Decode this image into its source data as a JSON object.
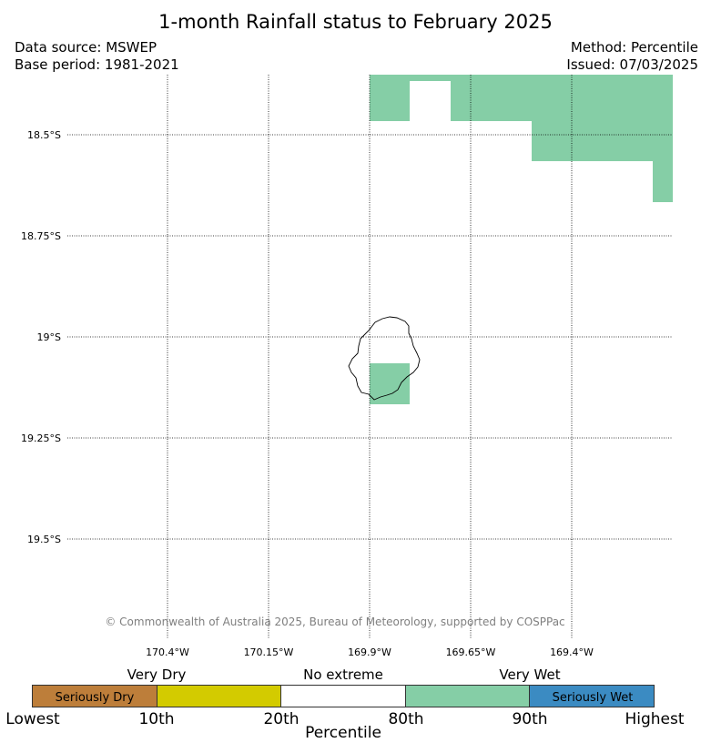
{
  "title": "1-month Rainfall status to February 2025",
  "meta": {
    "data_source": "Data source: MSWEP",
    "base_period": "Base period: 1981-2021",
    "method": "Method: Percentile",
    "issued": "Issued: 07/03/2025"
  },
  "map": {
    "lat_range": [
      -19.72,
      -18.38
    ],
    "lon_range": [
      -170.55,
      -169.2
    ],
    "lat_labels": [
      "18.5°S",
      "18.75°S",
      "19°S",
      "19.25°S",
      "19.5°S"
    ],
    "lon_labels": [
      "170.4°W",
      "170.15°W",
      "169.9°W",
      "169.65°W",
      "169.4°W"
    ],
    "gridlines": "dotted",
    "wet_color": "#85cea6",
    "island": "Niue"
  },
  "copyright": "© Commonwealth of Australia 2025, Bureau of Meteorology, supported by COSPPac",
  "legend": {
    "categories": [
      "Very Dry",
      "No extreme",
      "Very Wet"
    ],
    "segments": [
      {
        "label": "Seriously Dry",
        "color": "#bd7e3a"
      },
      {
        "label": "",
        "color": "#d3cb00"
      },
      {
        "label": "",
        "color": "#ffffff"
      },
      {
        "label": "",
        "color": "#85cea6"
      },
      {
        "label": "Seriously Wet",
        "color": "#3b8bc2"
      }
    ],
    "ticks": [
      "Lowest",
      "10th",
      "20th",
      "80th",
      "90th",
      "Highest"
    ],
    "xlabel": "Percentile"
  }
}
